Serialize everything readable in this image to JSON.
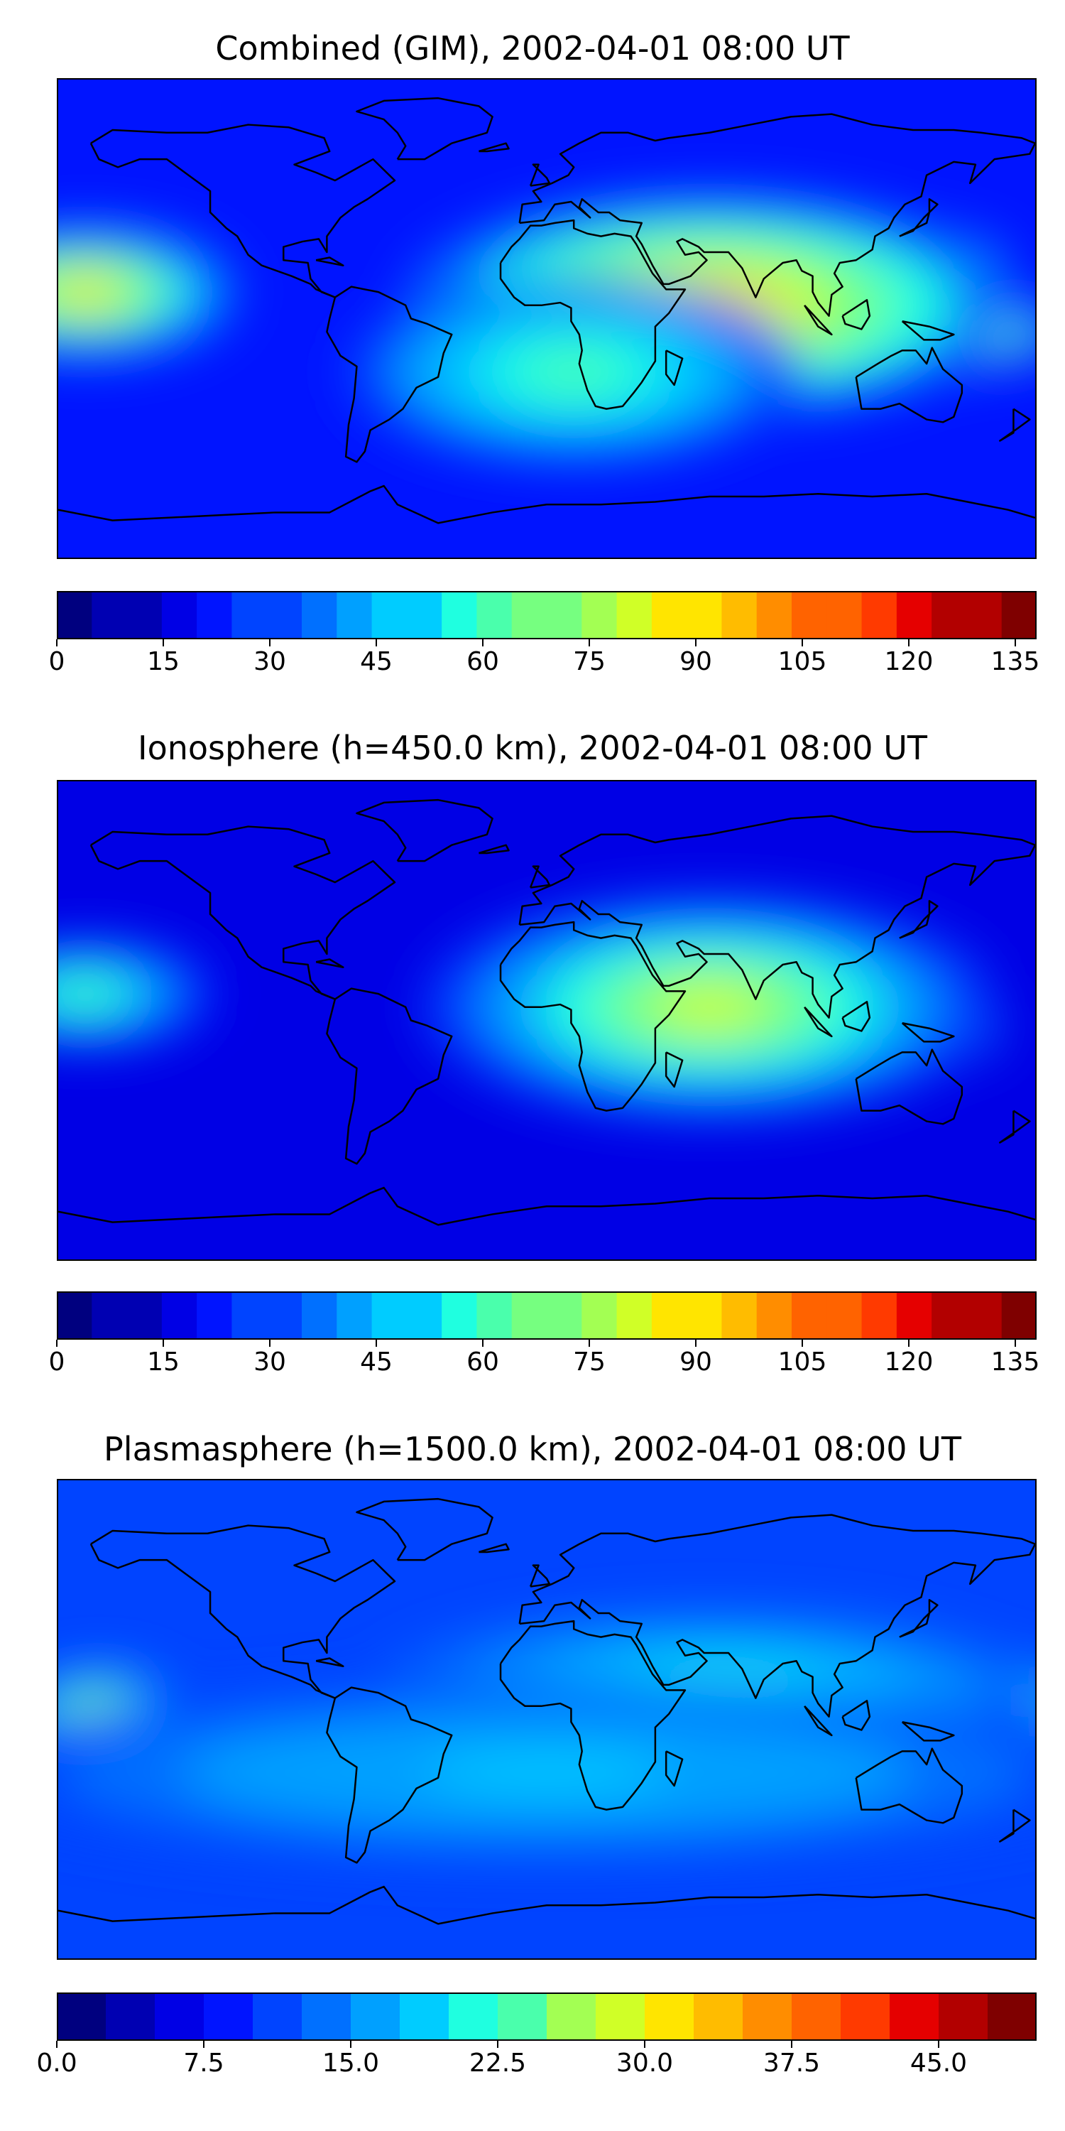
{
  "colors": [
    "#00007f",
    "#0000b2",
    "#0000e5",
    "#0014ff",
    "#0044ff",
    "#0070ff",
    "#00a0ff",
    "#00ccff",
    "#1fffe0",
    "#4affac",
    "#76ff80",
    "#a3ff53",
    "#d0ff27",
    "#ffe500",
    "#ffbc00",
    "#ff8d00",
    "#ff6300",
    "#ff3a00",
    "#e50000",
    "#b20000",
    "#7f0000"
  ],
  "panels": [
    {
      "title": "Combined (GIM), 2002-04-01 08:00 UT",
      "colorbar": {
        "min": 0,
        "max": 138,
        "levels": 28,
        "ticks": [
          "0",
          "15",
          "30",
          "45",
          "60",
          "75",
          "90",
          "105",
          "120",
          "135"
        ],
        "tick_values": [
          0,
          15,
          30,
          45,
          60,
          75,
          90,
          105,
          120,
          135
        ]
      },
      "blobs": [
        {
          "lon": 100,
          "lat": 20,
          "rlon": 50,
          "rlat": 12,
          "level": 0.95
        },
        {
          "lon": 115,
          "lat": -5,
          "rlon": 55,
          "rlat": 12,
          "level": 0.98
        },
        {
          "lon": 60,
          "lat": 5,
          "rlon": 80,
          "rlat": 30,
          "level": 0.7
        },
        {
          "lon": -170,
          "lat": 10,
          "rlon": 40,
          "rlat": 18,
          "level": 0.65
        },
        {
          "lon": 10,
          "lat": -20,
          "rlon": 60,
          "rlat": 25,
          "level": 0.45
        }
      ],
      "base_level": 0.16
    },
    {
      "title": "Ionosphere  (h=450.0 km), 2002-04-01 08:00 UT",
      "colorbar": {
        "min": 0,
        "max": 138,
        "levels": 28,
        "ticks": [
          "0",
          "15",
          "30",
          "45",
          "60",
          "75",
          "90",
          "105",
          "120",
          "135"
        ],
        "tick_values": [
          0,
          15,
          30,
          45,
          60,
          75,
          90,
          105,
          120,
          135
        ]
      },
      "blobs": [
        {
          "lon": 95,
          "lat": 20,
          "rlon": 45,
          "rlat": 10,
          "level": 0.85
        },
        {
          "lon": 105,
          "lat": -5,
          "rlon": 45,
          "rlat": 10,
          "level": 0.85
        },
        {
          "lon": 60,
          "lat": 5,
          "rlon": 75,
          "rlat": 30,
          "level": 0.6
        },
        {
          "lon": -170,
          "lat": 10,
          "rlon": 35,
          "rlat": 15,
          "level": 0.45
        }
      ],
      "base_level": 0.1
    },
    {
      "title": "Plasmasphere (h=1500.0 km), 2002-04-01 08:00 UT",
      "colorbar": {
        "min": 0,
        "max": 50,
        "levels": 20,
        "ticks": [
          "0.0",
          "7.5",
          "15.0",
          "22.5",
          "30.0",
          "37.5",
          "45.0"
        ],
        "tick_values": [
          0,
          7.5,
          15,
          22.5,
          30,
          37.5,
          45
        ]
      },
      "blobs": [
        {
          "lon": 165,
          "lat": 5,
          "rlon": 22,
          "rlat": 12,
          "level": 0.88
        },
        {
          "lon": -165,
          "lat": 0,
          "rlon": 22,
          "rlat": 14,
          "level": 0.62
        },
        {
          "lon": 60,
          "lat": 5,
          "rlon": 90,
          "rlat": 25,
          "level": 0.45
        },
        {
          "lon": 0,
          "lat": -20,
          "rlon": 160,
          "rlat": 25,
          "level": 0.35
        }
      ],
      "base_level": 0.18
    }
  ]
}
